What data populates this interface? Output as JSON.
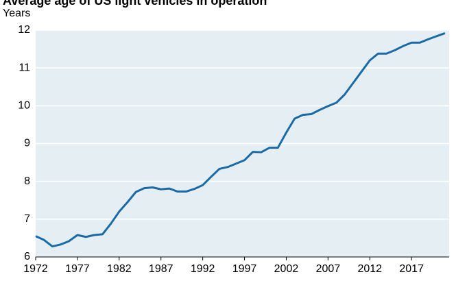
{
  "chart_data": {
    "type": "line",
    "title": "Average age of US light vehicles in operation",
    "subtitle": "Years",
    "x": [
      1972,
      1973,
      1974,
      1975,
      1976,
      1977,
      1978,
      1979,
      1980,
      1981,
      1982,
      1983,
      1984,
      1985,
      1986,
      1987,
      1988,
      1989,
      1990,
      1991,
      1992,
      1993,
      1994,
      1995,
      1996,
      1997,
      1998,
      1999,
      2000,
      2001,
      2002,
      2003,
      2004,
      2005,
      2006,
      2007,
      2008,
      2009,
      2010,
      2011,
      2012,
      2013,
      2014,
      2015,
      2016,
      2017,
      2018,
      2019,
      2020,
      2021
    ],
    "series": [
      {
        "name": "Average age",
        "color": "#1a6aa5",
        "values": [
          6.55,
          6.45,
          6.28,
          6.33,
          6.42,
          6.58,
          6.53,
          6.58,
          6.6,
          6.88,
          7.2,
          7.45,
          7.72,
          7.82,
          7.84,
          7.79,
          7.81,
          7.73,
          7.73,
          7.8,
          7.9,
          8.12,
          8.33,
          8.38,
          8.47,
          8.56,
          8.78,
          8.77,
          8.89,
          8.89,
          9.29,
          9.66,
          9.76,
          9.78,
          9.89,
          9.99,
          10.08,
          10.3,
          10.6,
          10.9,
          11.2,
          11.38,
          11.38,
          11.47,
          11.58,
          11.67,
          11.67,
          11.76,
          11.84,
          11.92
        ]
      }
    ],
    "xlim": [
      1972,
      2021.5
    ],
    "xticks": [
      1972,
      1977,
      1982,
      1987,
      1992,
      1997,
      2002,
      2007,
      2012,
      2017
    ],
    "ylim": [
      6,
      12
    ],
    "yticks": [
      6,
      7,
      8,
      9,
      10,
      11,
      12
    ],
    "grid": true,
    "plot_background": "#e5eff3"
  }
}
